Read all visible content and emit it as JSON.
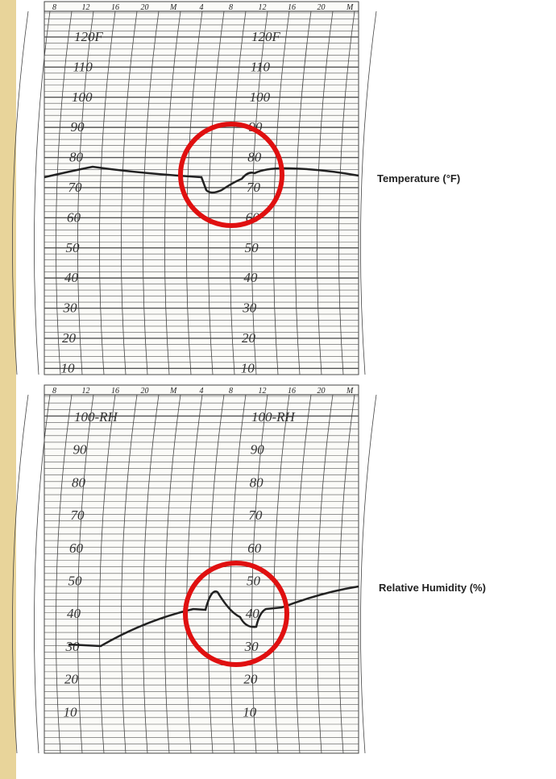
{
  "temperature_chart": {
    "caption": "Temperature (°F)",
    "time_labels": [
      "8",
      "12",
      "16",
      "20",
      "M",
      "4",
      "8",
      "12",
      "16",
      "20",
      "M"
    ],
    "scale_labels": [
      "120F",
      "110",
      "100",
      "90",
      "80",
      "70",
      "60",
      "50",
      "40",
      "30",
      "20",
      "10"
    ]
  },
  "humidity_chart": {
    "caption": "Relative Humidity (%)",
    "time_labels": [
      "8",
      "12",
      "16",
      "20",
      "M",
      "4",
      "8",
      "12",
      "16",
      "20",
      "M"
    ],
    "scale_labels": [
      "100-RH",
      "90",
      "80",
      "70",
      "60",
      "50",
      "40",
      "30",
      "20",
      "10"
    ]
  }
}
